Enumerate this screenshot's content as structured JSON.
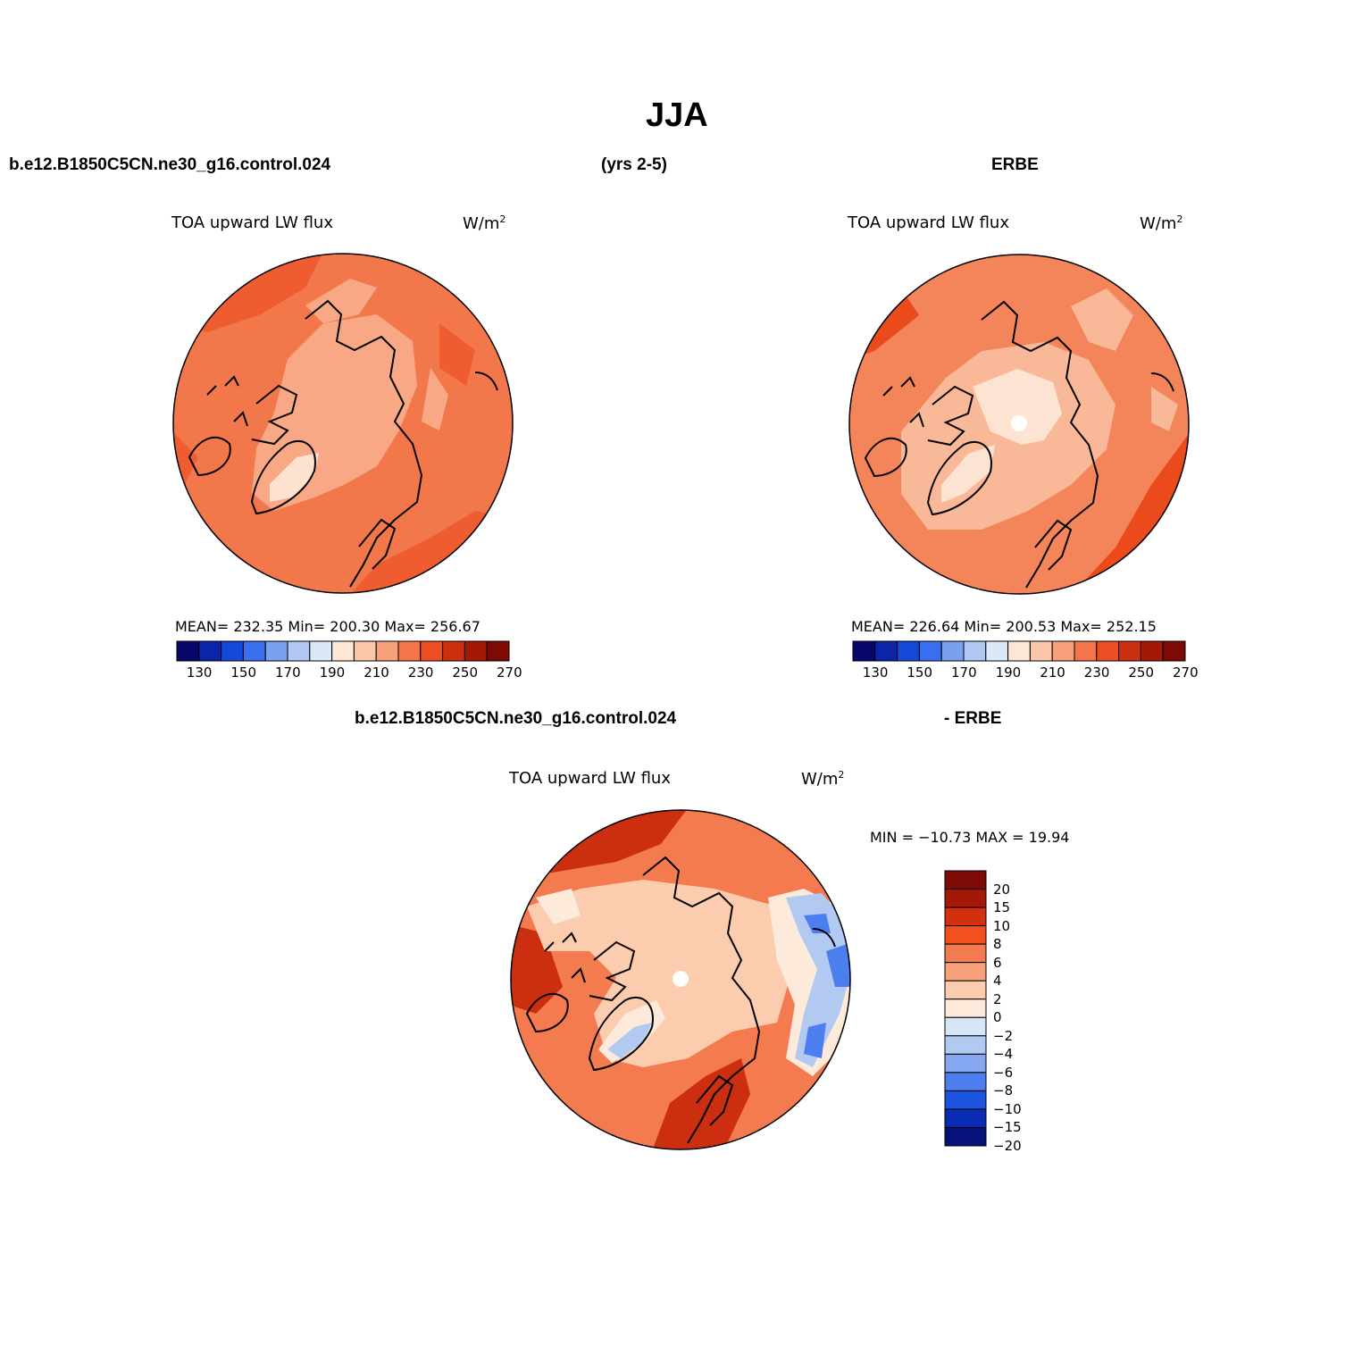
{
  "figure": {
    "title": "JJA",
    "case_name": "b.e12.B1850C5CN.ne30_g16.control.024",
    "period": "(yrs 2-5)",
    "obs_name": "ERBE",
    "diff_case_name": "b.e12.B1850C5CN.ne30_g16.control.024",
    "diff_obs_name": "- ERBE"
  },
  "panels": {
    "model": {
      "variable": "TOA upward LW flux",
      "units": "W/m",
      "units_sup": "2",
      "stats": "MEAN= 232.35   Min= 200.30   Max= 256.67"
    },
    "obs": {
      "variable": "TOA upward LW flux",
      "units": "W/m",
      "units_sup": "2",
      "stats": "MEAN= 226.64   Min= 200.53   Max= 252.15"
    },
    "diff": {
      "variable": "TOA upward LW flux",
      "units": "W/m",
      "units_sup": "2",
      "stats": "MIN = −10.73 MAX =   19.94"
    }
  },
  "colorbars": {
    "abs": {
      "colors": [
        "#08086b",
        "#0c24a8",
        "#1448d8",
        "#3a6ef0",
        "#7aa0f0",
        "#b2c8f4",
        "#dbe8f8",
        "#fde6d4",
        "#fcc6a8",
        "#f8a07a",
        "#f4744c",
        "#ee4e24",
        "#cc2e10",
        "#a41808",
        "#7e0a06"
      ],
      "labels": [
        "130",
        "150",
        "170",
        "190",
        "210",
        "230",
        "250",
        "270"
      ]
    },
    "diff": {
      "colors_top_to_bottom": [
        "#7e0a06",
        "#a41808",
        "#d2300e",
        "#f2501e",
        "#f47a50",
        "#f8a27c",
        "#fcccae",
        "#fdeada",
        "#d6e6f6",
        "#b2caf2",
        "#86a8f0",
        "#4c7ef0",
        "#1c54e0",
        "#0a2cb4",
        "#06127a"
      ],
      "labels_top_to_bottom": [
        "20",
        "15",
        "10",
        "8",
        "6",
        "4",
        "2",
        "0",
        "−2",
        "−4",
        "−6",
        "−8",
        "−10",
        "−15",
        "−20"
      ]
    }
  },
  "map_colors": {
    "model_base": "#f2784c",
    "model_inner": "#f8a884",
    "model_light": "#fde2d0",
    "model_dark": "#ee5c30",
    "obs_base": "#f4845a",
    "obs_inner": "#f9b898",
    "obs_light": "#fde4d2",
    "obs_dark": "#ea4a1c",
    "diff_base": "#f47a50",
    "diff_light": "#fcccae",
    "diff_pale": "#fdeada",
    "diff_dark": "#cc2e10",
    "diff_blue_light": "#b2caf2",
    "diff_blue": "#4c7ef0",
    "coastline": "#000000",
    "pole_hole": "#ffffff"
  }
}
